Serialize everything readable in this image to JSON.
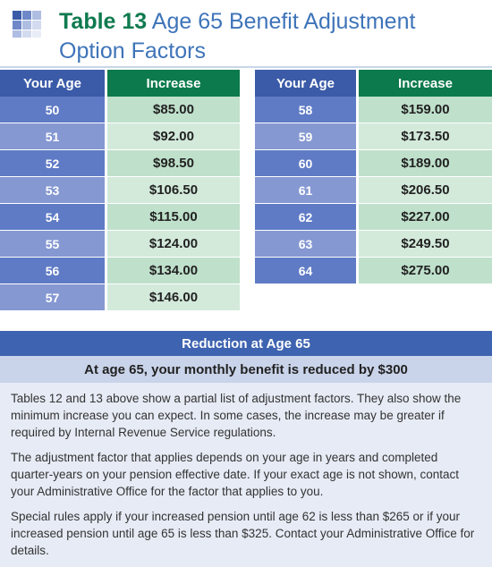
{
  "title": {
    "number": "Table 13",
    "line1": "Age 65 Benefit Adjustment",
    "line2": "Option Factors"
  },
  "columns": {
    "age": "Your Age",
    "increase": "Increase"
  },
  "left_table": [
    {
      "age": "50",
      "increase": "$85.00"
    },
    {
      "age": "51",
      "increase": "$92.00"
    },
    {
      "age": "52",
      "increase": "$98.50"
    },
    {
      "age": "53",
      "increase": "$106.50"
    },
    {
      "age": "54",
      "increase": "$115.00"
    },
    {
      "age": "55",
      "increase": "$124.00"
    },
    {
      "age": "56",
      "increase": "$134.00"
    },
    {
      "age": "57",
      "increase": "$146.00"
    }
  ],
  "right_table": [
    {
      "age": "58",
      "increase": "$159.00"
    },
    {
      "age": "59",
      "increase": "$173.50"
    },
    {
      "age": "60",
      "increase": "$189.00"
    },
    {
      "age": "61",
      "increase": "$206.50"
    },
    {
      "age": "62",
      "increase": "$227.00"
    },
    {
      "age": "63",
      "increase": "$249.50"
    },
    {
      "age": "64",
      "increase": "$275.00"
    }
  ],
  "reduction": {
    "header": "Reduction at Age 65",
    "statement": "At age 65, your monthly benefit is reduced by $300"
  },
  "notes": [
    "Tables 12 and 13 above show a partial list of adjustment factors. They also show the minimum increase you can expect. In some cases, the increase may be greater if required by Internal Revenue Service regulations.",
    "The adjustment factor that applies depends on your age in years and completed quarter-years on your pension effective date. If your exact age is not shown, contact your Administrative Office for the factor that applies to you.",
    "Special rules apply if your increased pension until age 62 is less than $265 or if your increased pension until age 65 is less than $325. Contact your Administrative Office for details."
  ],
  "colors": {
    "header_age": "#3b5ba8",
    "header_increase": "#0c7a4c",
    "title_blue": "#3e74b9",
    "title_green": "#0f7a4f"
  }
}
